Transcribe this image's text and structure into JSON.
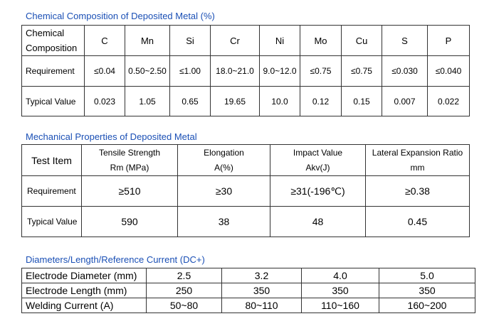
{
  "chemical": {
    "title": "Chemical Composition of Deposited Metal (%)",
    "corner": [
      "Chemical",
      "Composition"
    ],
    "elements": [
      "C",
      "Mn",
      "Si",
      "Cr",
      "Ni",
      "Mo",
      "Cu",
      "S",
      "P"
    ],
    "rows": [
      {
        "label": "Requirement",
        "values": [
          "≤0.04",
          "0.50~2.50",
          "≤1.00",
          "18.0~21.0",
          "9.0~12.0",
          "≤0.75",
          "≤0.75",
          "≤0.030",
          "≤0.040"
        ]
      },
      {
        "label": "Typical Value",
        "values": [
          "0.023",
          "1.05",
          "0.65",
          "19.65",
          "10.0",
          "0.12",
          "0.15",
          "0.007",
          "0.022"
        ]
      }
    ]
  },
  "mechanical": {
    "title": "Mechanical Properties of Deposited Metal",
    "corner": "Test Item",
    "headers": [
      {
        "line1": "Tensile Strength",
        "line2": "Rm (MPa)"
      },
      {
        "line1": "Elongation",
        "line2": "A(%)"
      },
      {
        "line1": "Impact Value",
        "line2": "Akv(J)"
      },
      {
        "line1": "Lateral Expansion Ratio",
        "line2": "mm"
      }
    ],
    "rows": [
      {
        "label": "Requirement",
        "values": [
          "≥510",
          "≥30",
          "≥31(-196℃)",
          "≥0.38"
        ]
      },
      {
        "label": "Typical Value",
        "values": [
          "590",
          "38",
          "48",
          "0.45"
        ]
      }
    ]
  },
  "diameters": {
    "title": "Diameters/Length/Reference Current (DC+)",
    "rows": [
      {
        "label": "Electrode Diameter (mm)",
        "values": [
          "2.5",
          "3.2",
          "4.0",
          "5.0"
        ]
      },
      {
        "label": "Electrode Length (mm)",
        "values": [
          "250",
          "350",
          "350",
          "350"
        ]
      },
      {
        "label": "Welding Current (A)",
        "values": [
          "50~80",
          "80~110",
          "110~160",
          "160~200"
        ]
      }
    ]
  }
}
